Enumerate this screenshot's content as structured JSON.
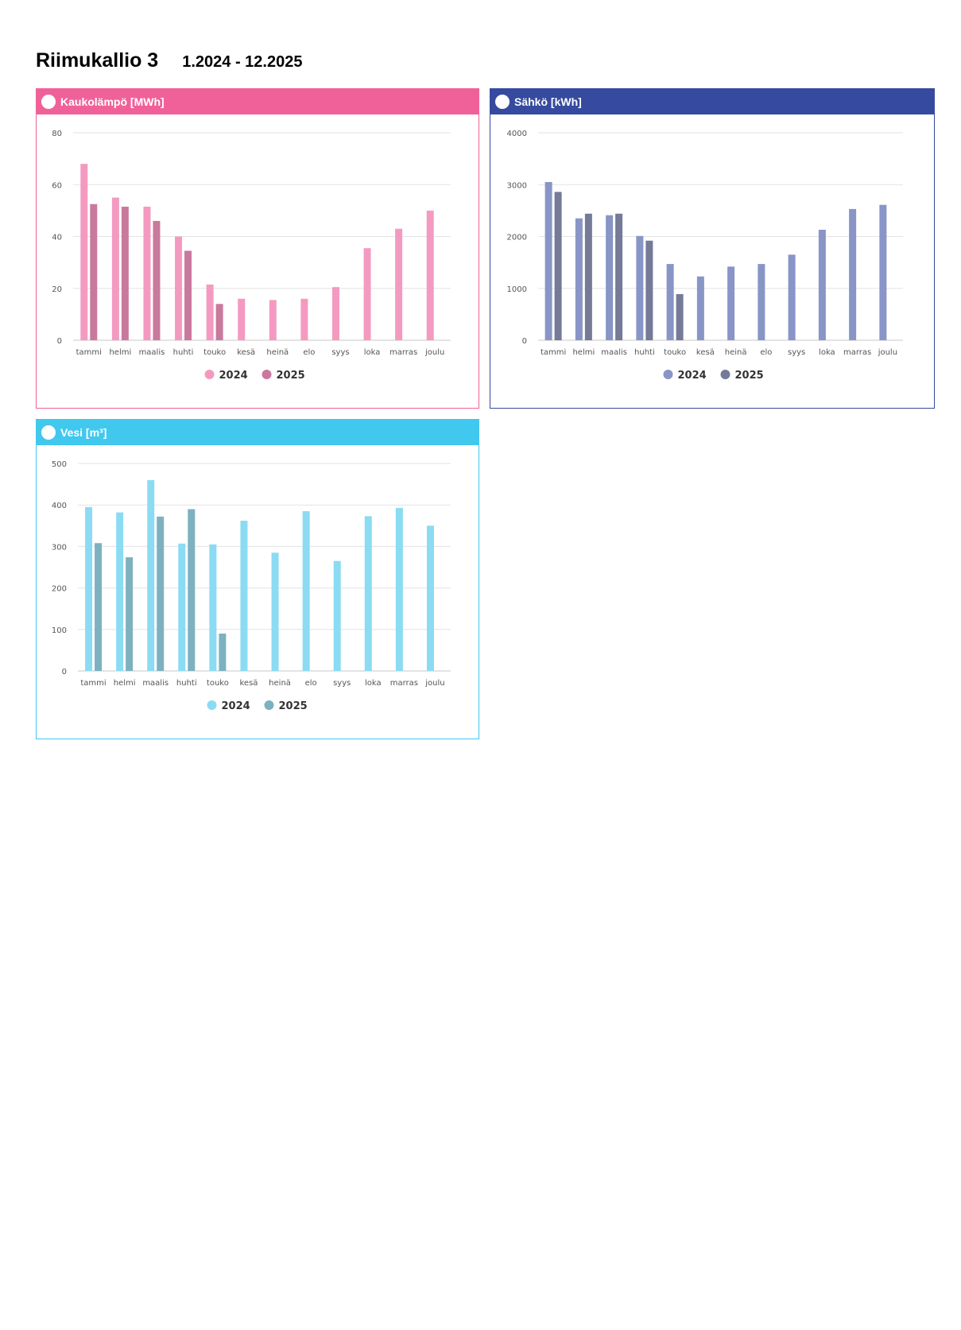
{
  "header": {
    "title": "Riimukallio 3",
    "period": "1.2024 - 12.2025"
  },
  "chart_data": [
    {
      "id": "heat",
      "type": "bar",
      "title": "Kaukolämpö [MWh]",
      "header_color": "#f06199",
      "categories": [
        "tammi",
        "helmi",
        "maalis",
        "huhti",
        "touko",
        "kesä",
        "heinä",
        "elo",
        "syys",
        "loka",
        "marras",
        "joulu"
      ],
      "ylim": [
        0,
        80
      ],
      "yticks": [
        0,
        20,
        40,
        60,
        80
      ],
      "series": [
        {
          "name": "2024",
          "color": "#f49ac1",
          "values": [
            68,
            55,
            51.5,
            40,
            21.5,
            16,
            15.5,
            16,
            20.5,
            35.5,
            43,
            50
          ]
        },
        {
          "name": "2025",
          "color": "#c9799e",
          "values": [
            52.5,
            51.5,
            46,
            34.5,
            14,
            null,
            null,
            null,
            null,
            null,
            null,
            null
          ]
        }
      ],
      "legend": "bottom-center",
      "grid": true
    },
    {
      "id": "electricity",
      "type": "bar",
      "title": "Sähkö [kWh]",
      "header_color": "#364a9f",
      "categories": [
        "tammi",
        "helmi",
        "maalis",
        "huhti",
        "touko",
        "kesä",
        "heinä",
        "elo",
        "syys",
        "loka",
        "marras",
        "joulu"
      ],
      "ylim": [
        0,
        4000
      ],
      "yticks": [
        0,
        1000,
        2000,
        3000,
        4000
      ],
      "series": [
        {
          "name": "2024",
          "color": "#8895c6",
          "values": [
            3050,
            2350,
            2410,
            2010,
            1470,
            1230,
            1420,
            1470,
            1650,
            2130,
            2530,
            2610
          ]
        },
        {
          "name": "2025",
          "color": "#757a97",
          "values": [
            2860,
            2440,
            2440,
            1920,
            890,
            null,
            null,
            null,
            null,
            null,
            null,
            null
          ]
        }
      ],
      "legend": "bottom-center",
      "grid": true
    },
    {
      "id": "water",
      "type": "bar",
      "title": "Vesi [m³]",
      "header_color": "#41c8ef",
      "categories": [
        "tammi",
        "helmi",
        "maalis",
        "huhti",
        "touko",
        "kesä",
        "heinä",
        "elo",
        "syys",
        "loka",
        "marras",
        "joulu"
      ],
      "ylim": [
        0,
        500
      ],
      "yticks": [
        0,
        100,
        200,
        300,
        400,
        500
      ],
      "series": [
        {
          "name": "2024",
          "color": "#8bdbf3",
          "values": [
            395,
            382,
            460,
            307,
            305,
            362,
            285,
            385,
            265,
            373,
            393,
            350
          ]
        },
        {
          "name": "2025",
          "color": "#7db1c0",
          "values": [
            308,
            274,
            372,
            390,
            90,
            null,
            null,
            null,
            null,
            null,
            null,
            null
          ]
        }
      ],
      "legend": "bottom-center",
      "grid": true
    }
  ]
}
